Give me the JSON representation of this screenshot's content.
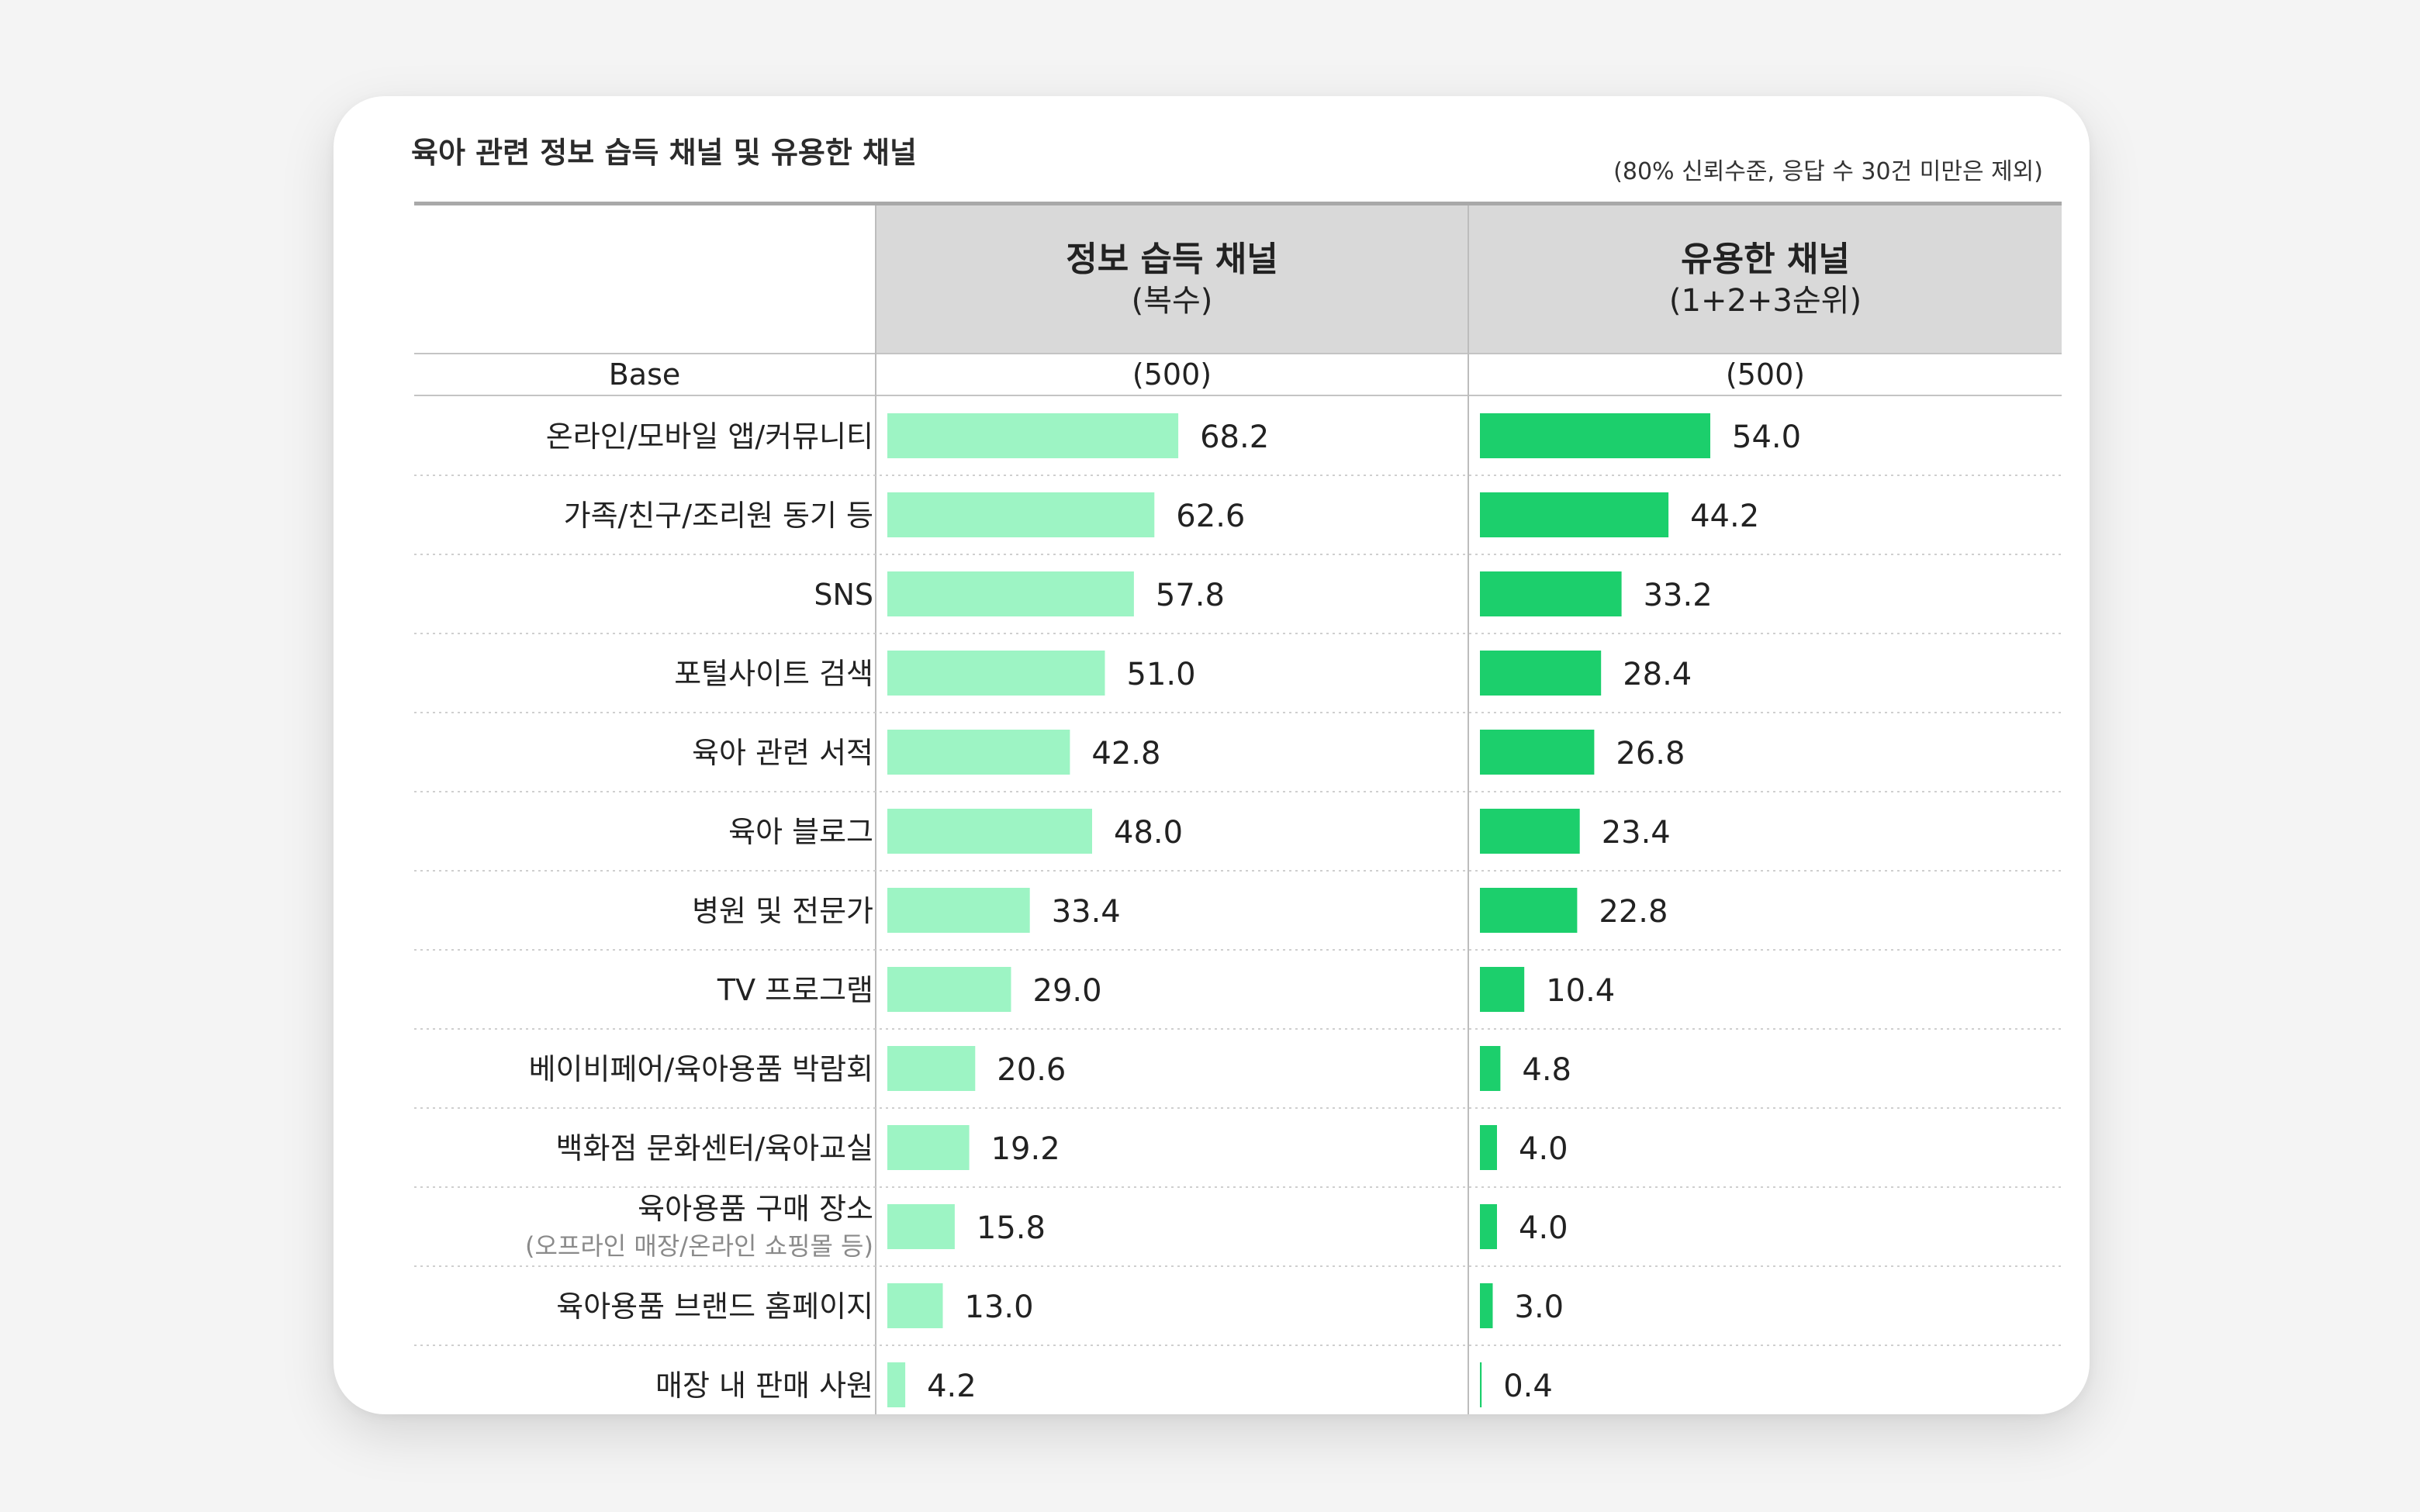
{
  "title": "육아 관련 정보 습득 채널 및 유용한 채널",
  "note": "(80% 신뢰수준, 응답 수 30건 미만은 제외)",
  "columns": [
    {
      "title": "정보 습득 채널",
      "subtitle": "(복수)",
      "base": "(500)"
    },
    {
      "title": "유용한 채널",
      "subtitle": "(1+2+3순위)",
      "base": "(500)"
    }
  ],
  "base_label": "Base",
  "colors": {
    "col1_bar": "#9df4c4",
    "col2_bar": "#1ccf6c",
    "dotted": "#cfcfcf"
  },
  "chart_data": {
    "type": "bar",
    "orientation": "horizontal",
    "categories": [
      {
        "label": "온라인/모바일 앱/커뮤니티"
      },
      {
        "label": "가족/친구/조리원 동기 등"
      },
      {
        "label": "SNS"
      },
      {
        "label": "포털사이트 검색"
      },
      {
        "label": "육아 관련 서적"
      },
      {
        "label": "육아 블로그"
      },
      {
        "label": "병원 및 전문가"
      },
      {
        "label": "TV 프로그램"
      },
      {
        "label": "베이비페어/육아용품 박람회"
      },
      {
        "label": "백화점 문화센터/육아교실"
      },
      {
        "label": "육아용품 구매 장소",
        "sublabel": "(오프라인 매장/온라인 쇼핑몰 등)"
      },
      {
        "label": "육아용품 브랜드 홈페이지"
      },
      {
        "label": "매장 내 판매 사원"
      }
    ],
    "series": [
      {
        "name": "정보 습득 채널",
        "values": [
          68.2,
          62.6,
          57.8,
          51.0,
          42.8,
          48.0,
          33.4,
          29.0,
          20.6,
          19.2,
          15.8,
          13.0,
          4.2
        ],
        "value_labels": [
          "68.2",
          "62.6",
          "57.8",
          "51.0",
          "42.8",
          "48.0",
          "33.4",
          "29.0",
          "20.6",
          "19.2",
          "15.8",
          "13.0",
          "4.2"
        ]
      },
      {
        "name": "유용한 채널",
        "values": [
          54.0,
          44.2,
          33.2,
          28.4,
          26.8,
          23.4,
          22.8,
          10.4,
          4.8,
          4.0,
          4.0,
          3.0,
          0.4
        ],
        "value_labels": [
          "54.0",
          "44.2",
          "33.2",
          "28.4",
          "26.8",
          "23.4",
          "22.8",
          "10.4",
          "4.8",
          "4.0",
          "4.0",
          "3.0",
          "0.4"
        ]
      }
    ],
    "xlim": [
      0,
      100
    ]
  }
}
